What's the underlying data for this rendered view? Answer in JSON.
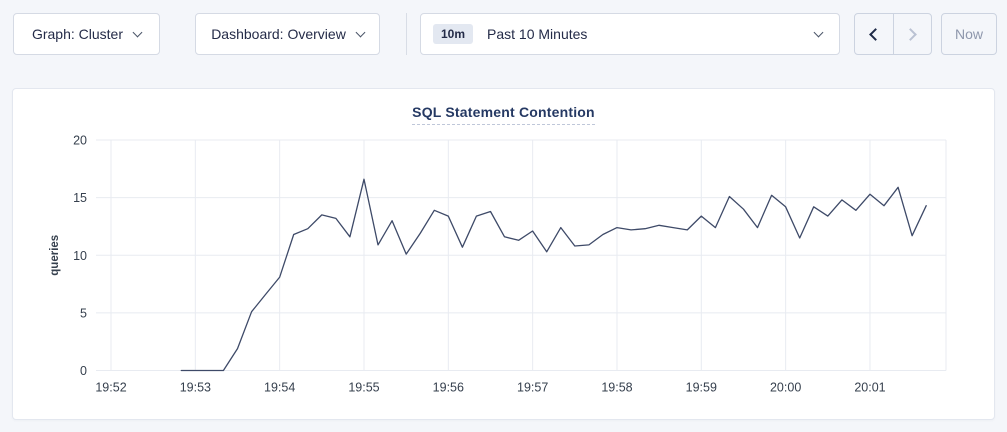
{
  "toolbar": {
    "graph_dropdown": "Graph: Cluster",
    "dashboard_dropdown": "Dashboard: Overview",
    "time_range": {
      "badge": "10m",
      "label": "Past 10 Minutes"
    },
    "now_button": "Now",
    "icons": {
      "graph_dropdown_icon": "chevron-down",
      "dashboard_dropdown_icon": "chevron-down",
      "time_range_icon": "chevron-down",
      "prev_icon": "chevron-left",
      "next_icon": "chevron-right"
    }
  },
  "colors": {
    "page_bg": "#f4f6fa",
    "panel_bg": "#ffffff",
    "line": "#3e4a68",
    "grid": "#e8ebf1",
    "tick_text": "#36404e",
    "title_text": "#253963",
    "button_text": "#242b48",
    "disabled_text": "#8e97ac",
    "border": "#d5dae4"
  },
  "chart_data": {
    "type": "line",
    "title": "SQL Statement Contention",
    "xlabel": "",
    "ylabel": "queries",
    "ylim": [
      0,
      20
    ],
    "yticks": [
      0,
      5,
      10,
      15,
      20
    ],
    "xticks": [
      "19:52",
      "19:53",
      "19:54",
      "19:55",
      "19:56",
      "19:57",
      "19:58",
      "19:59",
      "20:00",
      "20:01"
    ],
    "grid": true,
    "legend": "none",
    "series": [
      {
        "name": "queries",
        "color": "#3e4a68",
        "points": [
          [
            "19:52:50",
            0
          ],
          [
            "19:53:00",
            0
          ],
          [
            "19:53:10",
            0
          ],
          [
            "19:53:20",
            0
          ],
          [
            "19:53:30",
            1.9
          ],
          [
            "19:53:40",
            5.1
          ],
          [
            "19:53:50",
            6.6
          ],
          [
            "19:54:00",
            8.1
          ],
          [
            "19:54:10",
            11.8
          ],
          [
            "19:54:20",
            12.3
          ],
          [
            "19:54:30",
            13.5
          ],
          [
            "19:54:40",
            13.2
          ],
          [
            "19:54:50",
            11.6
          ],
          [
            "19:55:00",
            16.6
          ],
          [
            "19:55:10",
            10.9
          ],
          [
            "19:55:20",
            13.0
          ],
          [
            "19:55:30",
            10.1
          ],
          [
            "19:55:40",
            11.9
          ],
          [
            "19:55:50",
            13.9
          ],
          [
            "19:56:00",
            13.4
          ],
          [
            "19:56:10",
            10.7
          ],
          [
            "19:56:20",
            13.4
          ],
          [
            "19:56:30",
            13.8
          ],
          [
            "19:56:40",
            11.6
          ],
          [
            "19:56:50",
            11.3
          ],
          [
            "19:57:00",
            12.1
          ],
          [
            "19:57:10",
            10.3
          ],
          [
            "19:57:20",
            12.4
          ],
          [
            "19:57:30",
            10.8
          ],
          [
            "19:57:40",
            10.9
          ],
          [
            "19:57:50",
            11.8
          ],
          [
            "19:58:00",
            12.4
          ],
          [
            "19:58:10",
            12.2
          ],
          [
            "19:58:20",
            12.3
          ],
          [
            "19:58:30",
            12.6
          ],
          [
            "19:58:40",
            12.4
          ],
          [
            "19:58:50",
            12.2
          ],
          [
            "19:59:00",
            13.4
          ],
          [
            "19:59:10",
            12.4
          ],
          [
            "19:59:20",
            15.1
          ],
          [
            "19:59:30",
            14.0
          ],
          [
            "19:59:40",
            12.4
          ],
          [
            "19:59:50",
            15.2
          ],
          [
            "20:00:00",
            14.2
          ],
          [
            "20:00:10",
            11.5
          ],
          [
            "20:00:20",
            14.2
          ],
          [
            "20:00:30",
            13.4
          ],
          [
            "20:00:40",
            14.8
          ],
          [
            "20:00:50",
            13.9
          ],
          [
            "20:01:00",
            15.3
          ],
          [
            "20:01:10",
            14.3
          ],
          [
            "20:01:20",
            15.9
          ],
          [
            "20:01:30",
            11.7
          ],
          [
            "20:01:40",
            14.3
          ]
        ]
      }
    ]
  }
}
